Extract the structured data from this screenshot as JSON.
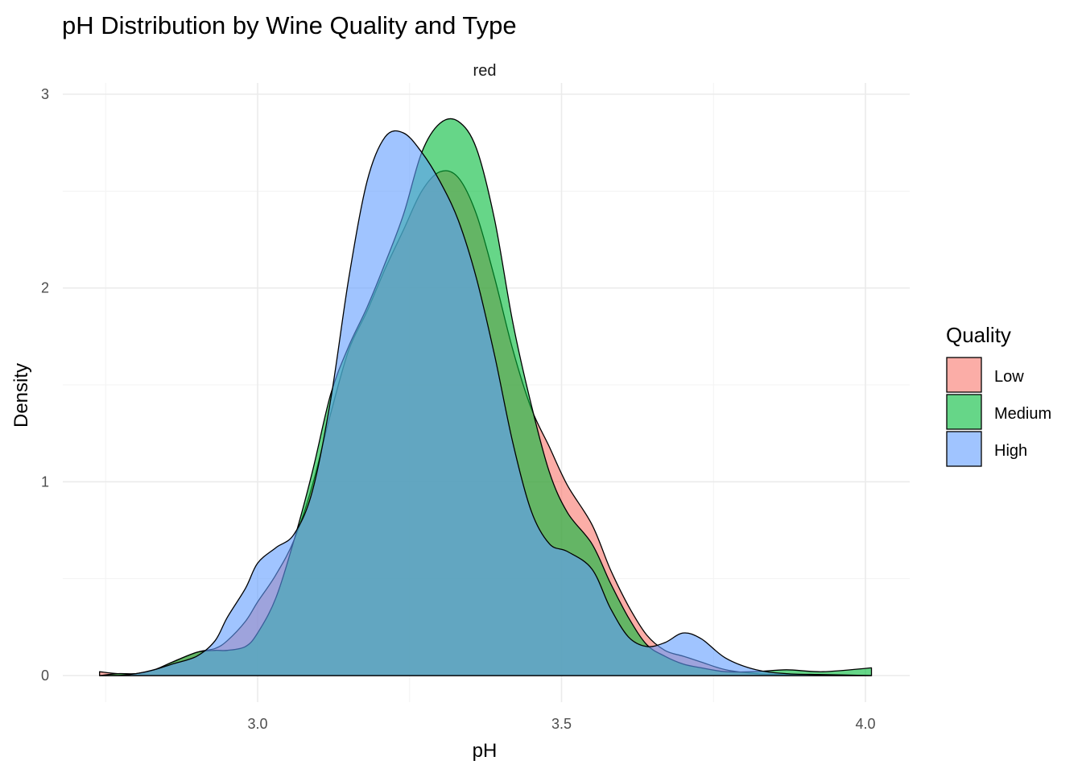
{
  "chart_data": {
    "type": "area",
    "subtype": "density",
    "title": "pH Distribution by Wine Quality and Type",
    "facet": "red",
    "xlabel": "pH",
    "ylabel": "Density",
    "xlim": [
      2.74,
      4.01
    ],
    "ylim": [
      0,
      3
    ],
    "x_ticks": [
      3.0,
      3.5,
      4.0
    ],
    "x_tick_labels": [
      "3.0",
      "3.5",
      "4.0"
    ],
    "y_ticks": [
      0,
      1,
      2,
      3
    ],
    "y_tick_labels": [
      "0",
      "1",
      "2",
      "3"
    ],
    "grid": true,
    "legend": {
      "title": "Quality",
      "position": "right"
    },
    "series": [
      {
        "name": "Low",
        "color": "#F8766D",
        "x": [
          2.74,
          2.77,
          2.8,
          2.83,
          2.86,
          2.9,
          2.93,
          2.95,
          2.98,
          3.0,
          3.03,
          3.06,
          3.09,
          3.12,
          3.15,
          3.18,
          3.21,
          3.24,
          3.27,
          3.3,
          3.33,
          3.36,
          3.39,
          3.42,
          3.45,
          3.48,
          3.51,
          3.55,
          3.58,
          3.61,
          3.64,
          3.67,
          3.7,
          3.73,
          3.77,
          3.82,
          3.87,
          3.93,
          4.01
        ],
        "y": [
          0.02,
          0.01,
          0.01,
          0.03,
          0.07,
          0.12,
          0.14,
          0.18,
          0.28,
          0.38,
          0.52,
          0.7,
          0.98,
          1.35,
          1.68,
          1.88,
          2.1,
          2.3,
          2.5,
          2.6,
          2.57,
          2.38,
          2.05,
          1.68,
          1.38,
          1.18,
          0.98,
          0.78,
          0.55,
          0.36,
          0.21,
          0.13,
          0.1,
          0.07,
          0.03,
          0.01,
          0.005,
          0.002,
          0.0
        ]
      },
      {
        "name": "Medium",
        "color": "#00BA38",
        "x": [
          2.74,
          2.77,
          2.8,
          2.83,
          2.86,
          2.9,
          2.93,
          2.95,
          2.98,
          3.0,
          3.03,
          3.06,
          3.09,
          3.12,
          3.15,
          3.18,
          3.21,
          3.24,
          3.27,
          3.3,
          3.33,
          3.36,
          3.39,
          3.42,
          3.45,
          3.48,
          3.51,
          3.55,
          3.58,
          3.61,
          3.64,
          3.67,
          3.7,
          3.73,
          3.77,
          3.82,
          3.87,
          3.93,
          4.01
        ],
        "y": [
          0.0,
          0.01,
          0.01,
          0.03,
          0.07,
          0.12,
          0.13,
          0.13,
          0.15,
          0.22,
          0.4,
          0.7,
          1.05,
          1.45,
          1.7,
          1.9,
          2.13,
          2.38,
          2.7,
          2.85,
          2.86,
          2.72,
          2.35,
          1.82,
          1.4,
          1.05,
          0.84,
          0.68,
          0.48,
          0.3,
          0.16,
          0.1,
          0.06,
          0.04,
          0.02,
          0.02,
          0.03,
          0.02,
          0.04
        ]
      },
      {
        "name": "High",
        "color": "#619CFF",
        "x": [
          2.74,
          2.77,
          2.8,
          2.83,
          2.86,
          2.9,
          2.93,
          2.95,
          2.98,
          3.0,
          3.03,
          3.06,
          3.09,
          3.12,
          3.15,
          3.18,
          3.21,
          3.24,
          3.27,
          3.3,
          3.33,
          3.36,
          3.39,
          3.42,
          3.45,
          3.48,
          3.51,
          3.55,
          3.58,
          3.61,
          3.64,
          3.67,
          3.7,
          3.73,
          3.77,
          3.82,
          3.87,
          3.93,
          4.01
        ],
        "y": [
          0.0,
          0.0,
          0.01,
          0.03,
          0.06,
          0.1,
          0.18,
          0.3,
          0.45,
          0.58,
          0.66,
          0.73,
          0.95,
          1.42,
          2.05,
          2.55,
          2.78,
          2.8,
          2.7,
          2.55,
          2.35,
          2.05,
          1.65,
          1.2,
          0.85,
          0.68,
          0.64,
          0.55,
          0.35,
          0.2,
          0.15,
          0.17,
          0.22,
          0.19,
          0.09,
          0.03,
          0.01,
          0.005,
          0.0
        ]
      }
    ]
  }
}
